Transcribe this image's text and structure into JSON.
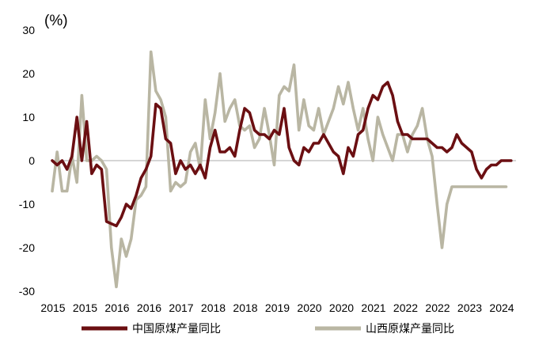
{
  "chart_data": {
    "type": "line",
    "unit_label": "(%)",
    "title": "",
    "xlabel": "",
    "ylabel": "",
    "ylim": [
      -30,
      30
    ],
    "y_ticks": [
      30,
      20,
      10,
      0,
      -10,
      -20,
      -30
    ],
    "x_tick_labels": [
      "2015",
      "2015",
      "2016",
      "2016",
      "2017",
      "2018",
      "2018",
      "2019",
      "2020",
      "2020",
      "2021",
      "2022",
      "2022",
      "2023",
      "2024"
    ],
    "x_range": [
      2015.0,
      2024.4
    ],
    "zero_line": true,
    "grid": false,
    "legend_position": "bottom",
    "series": [
      {
        "name": "中国原煤产量同比",
        "color": "#6b0f12",
        "x": [
          2015.0,
          2015.1,
          2015.2,
          2015.3,
          2015.4,
          2015.5,
          2015.6,
          2015.7,
          2015.8,
          2015.9,
          2016.0,
          2016.1,
          2016.3,
          2016.4,
          2016.5,
          2016.6,
          2016.7,
          2016.8,
          2016.9,
          2017.0,
          2017.1,
          2017.2,
          2017.3,
          2017.4,
          2017.5,
          2017.6,
          2017.7,
          2017.8,
          2017.9,
          2018.0,
          2018.1,
          2018.2,
          2018.3,
          2018.4,
          2018.5,
          2018.6,
          2018.7,
          2018.8,
          2018.9,
          2019.0,
          2019.1,
          2019.2,
          2019.3,
          2019.4,
          2019.5,
          2019.6,
          2019.7,
          2019.8,
          2019.9,
          2020.0,
          2020.1,
          2020.2,
          2020.3,
          2020.4,
          2020.5,
          2020.6,
          2020.7,
          2020.8,
          2020.9,
          2021.0,
          2021.1,
          2021.2,
          2021.3,
          2021.4,
          2021.5,
          2021.6,
          2021.7,
          2021.8,
          2021.9,
          2022.0,
          2022.1,
          2022.2,
          2022.3,
          2022.4,
          2022.5,
          2022.6,
          2022.7,
          2022.8,
          2022.9,
          2023.0,
          2023.1,
          2023.2,
          2023.3,
          2023.4,
          2023.5,
          2023.6,
          2023.7,
          2023.8,
          2023.9,
          2024.0,
          2024.1,
          2024.2,
          2024.3
        ],
        "values": [
          0,
          -1,
          0,
          -2,
          1,
          10,
          0,
          9,
          -3,
          -1,
          -2,
          -14,
          -15,
          -13,
          -10,
          -11,
          -8,
          -4,
          -2,
          1,
          13,
          12,
          5,
          4,
          -3,
          0,
          -2,
          -1,
          -3,
          -1,
          -4,
          3,
          7,
          2,
          2,
          3,
          1,
          7,
          12,
          11,
          7,
          6,
          6,
          5,
          7,
          6,
          12,
          3,
          0,
          -1,
          3,
          2,
          4,
          4,
          6,
          4,
          2,
          1,
          -3,
          3,
          1,
          6,
          7,
          12,
          15,
          14,
          17,
          18,
          15,
          9,
          6,
          6,
          5,
          5,
          5,
          5,
          4,
          3,
          3,
          2,
          3,
          6,
          4,
          3,
          2,
          -2,
          -4,
          -2,
          -1,
          -1,
          0,
          0,
          0
        ]
      },
      {
        "name": "山西原煤产量同比",
        "color": "#b9b6a3",
        "x": [
          2015.0,
          2015.1,
          2015.2,
          2015.3,
          2015.4,
          2015.5,
          2015.6,
          2015.7,
          2015.8,
          2015.9,
          2016.0,
          2016.1,
          2016.2,
          2016.3,
          2016.4,
          2016.5,
          2016.6,
          2016.7,
          2016.8,
          2016.9,
          2017.0,
          2017.1,
          2017.2,
          2017.3,
          2017.4,
          2017.5,
          2017.6,
          2017.7,
          2017.8,
          2017.9,
          2018.0,
          2018.1,
          2018.2,
          2018.3,
          2018.4,
          2018.5,
          2018.6,
          2018.7,
          2018.8,
          2018.9,
          2019.0,
          2019.1,
          2019.2,
          2019.3,
          2019.4,
          2019.5,
          2019.6,
          2019.7,
          2019.8,
          2019.9,
          2020.0,
          2020.1,
          2020.2,
          2020.3,
          2020.4,
          2020.5,
          2020.6,
          2020.7,
          2020.8,
          2020.9,
          2021.0,
          2021.1,
          2021.2,
          2021.3,
          2021.4,
          2021.5,
          2021.6,
          2021.7,
          2021.8,
          2021.9,
          2022.0,
          2022.1,
          2022.2,
          2022.3,
          2022.4,
          2022.5,
          2022.6,
          2022.7,
          2022.8,
          2022.9,
          2023.0,
          2023.1,
          2023.2,
          2023.3,
          2023.4,
          2023.5,
          2023.6,
          2023.7,
          2023.8,
          2023.9,
          2024.0,
          2024.1,
          2024.2
        ],
        "values": [
          -7,
          2,
          -7,
          -7,
          1,
          -5,
          15,
          0,
          0,
          1,
          0,
          -2,
          -20,
          -29,
          -18,
          -22,
          -18,
          -9,
          -8,
          -6,
          25,
          16,
          14,
          10,
          -7,
          -5,
          -6,
          -5,
          2,
          4,
          -2,
          14,
          5,
          11,
          20,
          9,
          12,
          14,
          8,
          7,
          8,
          3,
          5,
          12,
          6,
          -1,
          15,
          17,
          16,
          22,
          7,
          14,
          8,
          7,
          12,
          6,
          9,
          12,
          17,
          13,
          18,
          12,
          7,
          12,
          5,
          0,
          10,
          6,
          3,
          0,
          6,
          6,
          2,
          6,
          8,
          12,
          5,
          1,
          -10,
          -20,
          -10,
          -6,
          -6,
          -6,
          -6,
          -6,
          -6,
          -6,
          -6,
          -6,
          -6,
          -6,
          -6
        ]
      }
    ]
  }
}
